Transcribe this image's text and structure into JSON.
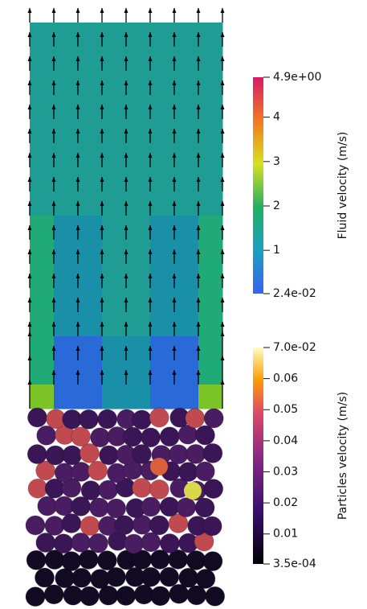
{
  "colorbars": [
    {
      "title": "Fluid velocity (m/s)",
      "max": {
        "value": 4.9,
        "label": "4.9e+00"
      },
      "min": {
        "value": 0.024,
        "label": "2.4e-02"
      },
      "ticks": [
        4,
        3,
        2,
        1
      ]
    },
    {
      "title": "Particles velocity (m/s)",
      "max": {
        "value": 0.07,
        "label": "7.0e-02"
      },
      "min": {
        "value": 0.00035,
        "label": "3.5e-04"
      },
      "ticks": [
        0.06,
        0.05,
        0.04,
        0.03,
        0.02,
        0.01
      ]
    }
  ]
}
